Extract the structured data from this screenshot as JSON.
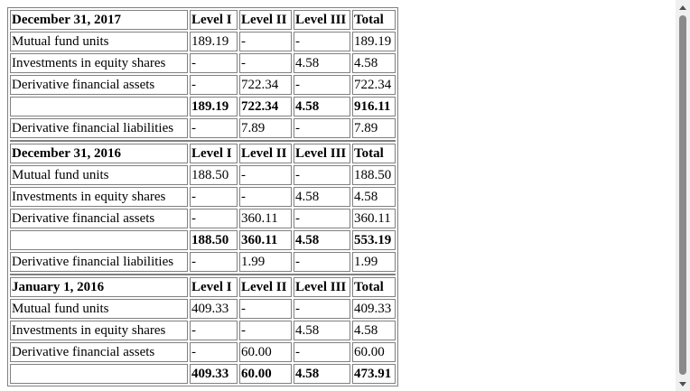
{
  "tables": [
    {
      "header": [
        "December 31, 2017",
        "Level I",
        "Level II",
        "Level III",
        "Total"
      ],
      "rows": [
        [
          "Mutual fund units",
          "189.19",
          "-",
          "-",
          "189.19"
        ],
        [
          "Investments in equity shares",
          "-",
          "-",
          "4.58",
          "4.58"
        ],
        [
          "Derivative financial assets",
          "-",
          "722.34",
          "-",
          "722.34"
        ]
      ],
      "total": [
        "",
        "189.19",
        "722.34",
        "4.58",
        "916.11"
      ],
      "liabilities": [
        "Derivative financial liabilities",
        "-",
        "7.89",
        "-",
        "7.89"
      ]
    },
    {
      "header": [
        "December 31, 2016",
        "Level I",
        "Level II",
        "Level III",
        "Total"
      ],
      "rows": [
        [
          "Mutual fund units",
          "188.50",
          "-",
          "-",
          "188.50"
        ],
        [
          "Investments in equity shares",
          "-",
          "-",
          "4.58",
          "4.58"
        ],
        [
          "Derivative financial assets",
          "-",
          "360.11",
          "-",
          "360.11"
        ]
      ],
      "total": [
        "",
        "188.50",
        "360.11",
        "4.58",
        "553.19"
      ],
      "liabilities": [
        "Derivative financial liabilities",
        "-",
        "1.99",
        "-",
        "1.99"
      ]
    },
    {
      "header": [
        "January 1, 2016",
        "Level I",
        "Level II",
        "Level III",
        "Total"
      ],
      "rows": [
        [
          "Mutual fund units",
          "409.33",
          "-",
          "-",
          "409.33"
        ],
        [
          "Investments in equity shares",
          "-",
          "-",
          "4.58",
          "4.58"
        ],
        [
          "Derivative financial assets",
          "-",
          "60.00",
          "-",
          "60.00"
        ]
      ],
      "total": [
        "",
        "409.33",
        "60.00",
        "4.58",
        "473.91"
      ]
    }
  ]
}
